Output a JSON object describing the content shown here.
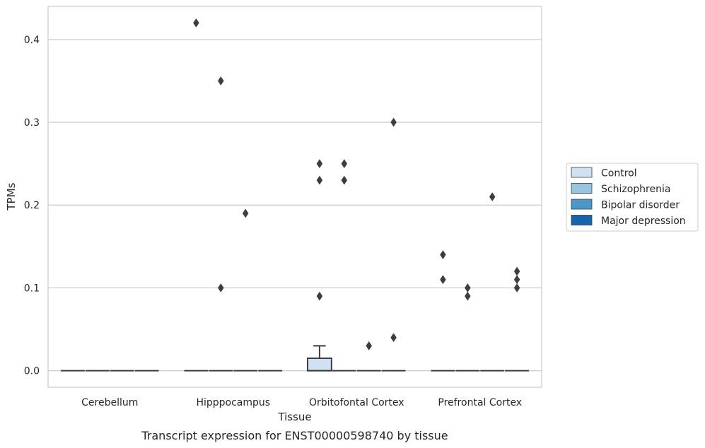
{
  "chart_data": {
    "type": "box",
    "caption": "Transcript expression for ENST00000598740 by tissue",
    "xlabel": "Tissue",
    "ylabel": "TPMs",
    "ylim": [
      -0.02,
      0.44
    ],
    "yticks": [
      0.0,
      0.1,
      0.2,
      0.3,
      0.4
    ],
    "ytick_labels": [
      "0.0",
      "0.1",
      "0.2",
      "0.3",
      "0.4"
    ],
    "grid": "horizontal",
    "legend_position": "right",
    "categories": [
      "Cerebellum",
      "Hipppocampus",
      "Orbitofontal Cortex",
      "Prefrontal Cortex"
    ],
    "series": [
      {
        "name": "Control",
        "color": "#d0e1f2"
      },
      {
        "name": "Schizophrenia",
        "color": "#94c4df"
      },
      {
        "name": "Bipolar disorder",
        "color": "#4a98c9"
      },
      {
        "name": "Major depression",
        "color": "#1764ab"
      }
    ],
    "boxes": [
      {
        "category": "Cerebellum",
        "series": "Control",
        "q1": 0,
        "median": 0,
        "q3": 0,
        "whisker_low": 0,
        "whisker_high": 0,
        "outliers": []
      },
      {
        "category": "Cerebellum",
        "series": "Schizophrenia",
        "q1": 0,
        "median": 0,
        "q3": 0,
        "whisker_low": 0,
        "whisker_high": 0,
        "outliers": []
      },
      {
        "category": "Cerebellum",
        "series": "Bipolar disorder",
        "q1": 0,
        "median": 0,
        "q3": 0,
        "whisker_low": 0,
        "whisker_high": 0,
        "outliers": []
      },
      {
        "category": "Cerebellum",
        "series": "Major depression",
        "q1": 0,
        "median": 0,
        "q3": 0,
        "whisker_low": 0,
        "whisker_high": 0,
        "outliers": []
      },
      {
        "category": "Hipppocampus",
        "series": "Control",
        "q1": 0,
        "median": 0,
        "q3": 0,
        "whisker_low": 0,
        "whisker_high": 0,
        "outliers": [
          0.42
        ]
      },
      {
        "category": "Hipppocampus",
        "series": "Schizophrenia",
        "q1": 0,
        "median": 0,
        "q3": 0,
        "whisker_low": 0,
        "whisker_high": 0,
        "outliers": [
          0.35,
          0.1
        ]
      },
      {
        "category": "Hipppocampus",
        "series": "Bipolar disorder",
        "q1": 0,
        "median": 0,
        "q3": 0,
        "whisker_low": 0,
        "whisker_high": 0,
        "outliers": [
          0.19
        ]
      },
      {
        "category": "Hipppocampus",
        "series": "Major depression",
        "q1": 0,
        "median": 0,
        "q3": 0,
        "whisker_low": 0,
        "whisker_high": 0,
        "outliers": []
      },
      {
        "category": "Orbitofontal Cortex",
        "series": "Control",
        "q1": 0,
        "median": 0,
        "q3": 0.015,
        "whisker_low": 0,
        "whisker_high": 0.03,
        "outliers": [
          0.25,
          0.23,
          0.09
        ]
      },
      {
        "category": "Orbitofontal Cortex",
        "series": "Schizophrenia",
        "q1": 0,
        "median": 0,
        "q3": 0,
        "whisker_low": 0,
        "whisker_high": 0,
        "outliers": [
          0.25,
          0.23
        ]
      },
      {
        "category": "Orbitofontal Cortex",
        "series": "Bipolar disorder",
        "q1": 0,
        "median": 0,
        "q3": 0,
        "whisker_low": 0,
        "whisker_high": 0,
        "outliers": [
          0.03
        ]
      },
      {
        "category": "Orbitofontal Cortex",
        "series": "Major depression",
        "q1": 0,
        "median": 0,
        "q3": 0,
        "whisker_low": 0,
        "whisker_high": 0,
        "outliers": [
          0.3,
          0.04
        ]
      },
      {
        "category": "Prefrontal Cortex",
        "series": "Control",
        "q1": 0,
        "median": 0,
        "q3": 0,
        "whisker_low": 0,
        "whisker_high": 0,
        "outliers": [
          0.14,
          0.11
        ]
      },
      {
        "category": "Prefrontal Cortex",
        "series": "Schizophrenia",
        "q1": 0,
        "median": 0,
        "q3": 0,
        "whisker_low": 0,
        "whisker_high": 0,
        "outliers": [
          0.1,
          0.09
        ]
      },
      {
        "category": "Prefrontal Cortex",
        "series": "Bipolar disorder",
        "q1": 0,
        "median": 0,
        "q3": 0,
        "whisker_low": 0,
        "whisker_high": 0,
        "outliers": [
          0.21
        ]
      },
      {
        "category": "Prefrontal Cortex",
        "series": "Major depression",
        "q1": 0,
        "median": 0,
        "q3": 0,
        "whisker_low": 0,
        "whisker_high": 0,
        "outliers": [
          0.12,
          0.11,
          0.1
        ]
      }
    ]
  }
}
